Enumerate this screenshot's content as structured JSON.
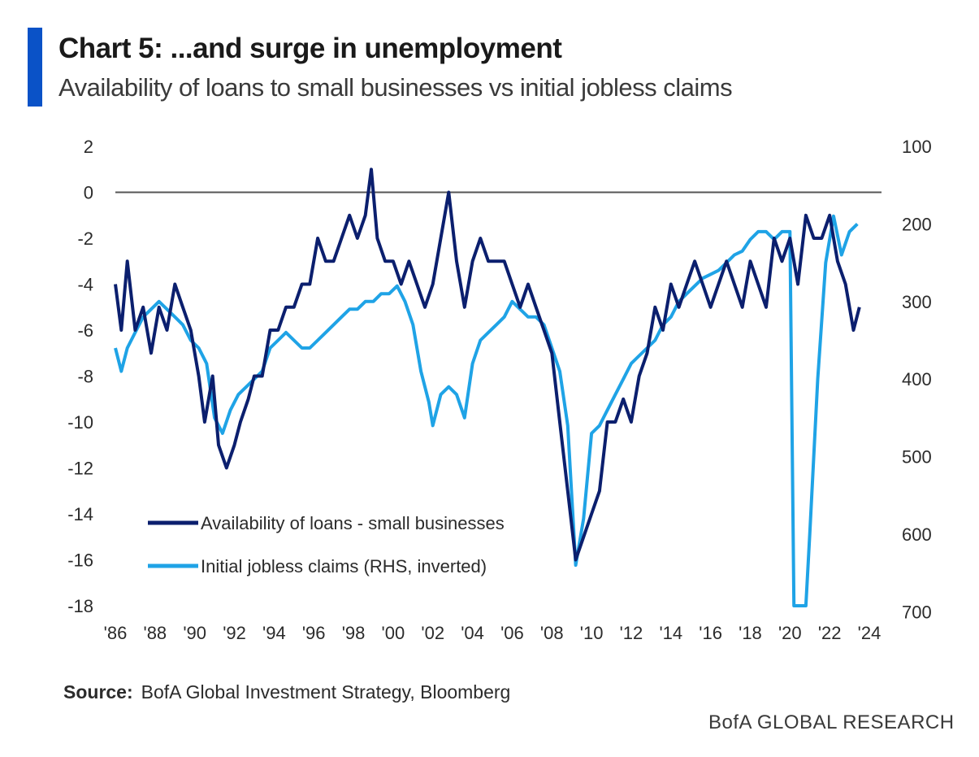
{
  "header": {
    "title": "Chart 5: ...and surge in unemployment",
    "subtitle": "Availability of loans to small businesses vs initial jobless claims",
    "accent_color": "#0a52c7"
  },
  "footer": {
    "source_label": "Source:",
    "source_text": "BofA Global Investment Strategy, Bloomberg",
    "brand": "BofA GLOBAL RESEARCH"
  },
  "chart_data": {
    "type": "line",
    "x_range": [
      1986,
      2024
    ],
    "x_ticks": [
      "'86",
      "'88",
      "'90",
      "'92",
      "'94",
      "'96",
      "'98",
      "'00",
      "'02",
      "'04",
      "'06",
      "'08",
      "'10",
      "'12",
      "'14",
      "'16",
      "'18",
      "'20",
      "'22",
      "'24"
    ],
    "y_left": {
      "range": [
        -18,
        2
      ],
      "ticks": [
        "2",
        "0",
        "-2",
        "-4",
        "-6",
        "-8",
        "-10",
        "-12",
        "-14",
        "-16",
        "-18"
      ]
    },
    "y_right": {
      "range": [
        100,
        750
      ],
      "inverted": true,
      "ticks": [
        "100",
        "200",
        "300",
        "400",
        "500",
        "600",
        "700"
      ]
    },
    "zero_line": 0,
    "legend_position": "lower-left",
    "series": [
      {
        "name": "Availability of loans - small businesses",
        "axis": "left",
        "color": "#0b1f6e",
        "points": [
          [
            1986.0,
            -4
          ],
          [
            1986.3,
            -6
          ],
          [
            1986.6,
            -3
          ],
          [
            1987.0,
            -6
          ],
          [
            1987.4,
            -5
          ],
          [
            1987.8,
            -7
          ],
          [
            1988.2,
            -5
          ],
          [
            1988.6,
            -6
          ],
          [
            1989.0,
            -4
          ],
          [
            1989.4,
            -5
          ],
          [
            1989.8,
            -6
          ],
          [
            1990.2,
            -8
          ],
          [
            1990.5,
            -10
          ],
          [
            1990.9,
            -8
          ],
          [
            1991.2,
            -11
          ],
          [
            1991.6,
            -12
          ],
          [
            1992.0,
            -11
          ],
          [
            1992.3,
            -10
          ],
          [
            1992.7,
            -9
          ],
          [
            1993.0,
            -8
          ],
          [
            1993.4,
            -8
          ],
          [
            1993.8,
            -6
          ],
          [
            1994.2,
            -6
          ],
          [
            1994.6,
            -5
          ],
          [
            1995.0,
            -5
          ],
          [
            1995.4,
            -4
          ],
          [
            1995.8,
            -4
          ],
          [
            1996.2,
            -2
          ],
          [
            1996.6,
            -3
          ],
          [
            1997.0,
            -3
          ],
          [
            1997.4,
            -2
          ],
          [
            1997.8,
            -1
          ],
          [
            1998.2,
            -2
          ],
          [
            1998.6,
            -1
          ],
          [
            1998.9,
            1
          ],
          [
            1999.2,
            -2
          ],
          [
            1999.6,
            -3
          ],
          [
            2000.0,
            -3
          ],
          [
            2000.4,
            -4
          ],
          [
            2000.8,
            -3
          ],
          [
            2001.2,
            -4
          ],
          [
            2001.6,
            -5
          ],
          [
            2002.0,
            -4
          ],
          [
            2002.4,
            -2
          ],
          [
            2002.8,
            0
          ],
          [
            2003.2,
            -3
          ],
          [
            2003.6,
            -5
          ],
          [
            2004.0,
            -3
          ],
          [
            2004.4,
            -2
          ],
          [
            2004.8,
            -3
          ],
          [
            2005.2,
            -3
          ],
          [
            2005.6,
            -3
          ],
          [
            2006.0,
            -4
          ],
          [
            2006.4,
            -5
          ],
          [
            2006.8,
            -4
          ],
          [
            2007.2,
            -5
          ],
          [
            2007.6,
            -6
          ],
          [
            2008.0,
            -7
          ],
          [
            2008.4,
            -10
          ],
          [
            2008.8,
            -13
          ],
          [
            2009.2,
            -16
          ],
          [
            2009.6,
            -15
          ],
          [
            2010.0,
            -14
          ],
          [
            2010.4,
            -13
          ],
          [
            2010.8,
            -10
          ],
          [
            2011.2,
            -10
          ],
          [
            2011.6,
            -9
          ],
          [
            2012.0,
            -10
          ],
          [
            2012.4,
            -8
          ],
          [
            2012.8,
            -7
          ],
          [
            2013.2,
            -5
          ],
          [
            2013.6,
            -6
          ],
          [
            2014.0,
            -4
          ],
          [
            2014.4,
            -5
          ],
          [
            2014.8,
            -4
          ],
          [
            2015.2,
            -3
          ],
          [
            2015.6,
            -4
          ],
          [
            2016.0,
            -5
          ],
          [
            2016.4,
            -4
          ],
          [
            2016.8,
            -3
          ],
          [
            2017.2,
            -4
          ],
          [
            2017.6,
            -5
          ],
          [
            2018.0,
            -3
          ],
          [
            2018.4,
            -4
          ],
          [
            2018.8,
            -5
          ],
          [
            2019.2,
            -2
          ],
          [
            2019.6,
            -3
          ],
          [
            2020.0,
            -2
          ],
          [
            2020.4,
            -4
          ],
          [
            2020.8,
            -1
          ],
          [
            2021.2,
            -2
          ],
          [
            2021.6,
            -2
          ],
          [
            2022.0,
            -1
          ],
          [
            2022.4,
            -3
          ],
          [
            2022.8,
            -4
          ],
          [
            2023.2,
            -6
          ],
          [
            2023.5,
            -5
          ]
        ]
      },
      {
        "name": "Initial jobless claims (RHS, inverted)",
        "axis": "right",
        "color": "#1fa3e6",
        "points": [
          [
            1986.0,
            360
          ],
          [
            1986.3,
            390
          ],
          [
            1986.6,
            360
          ],
          [
            1987.0,
            340
          ],
          [
            1987.4,
            320
          ],
          [
            1987.8,
            310
          ],
          [
            1988.2,
            300
          ],
          [
            1988.6,
            310
          ],
          [
            1989.0,
            320
          ],
          [
            1989.4,
            330
          ],
          [
            1989.8,
            350
          ],
          [
            1990.2,
            360
          ],
          [
            1990.6,
            380
          ],
          [
            1991.0,
            450
          ],
          [
            1991.4,
            470
          ],
          [
            1991.8,
            440
          ],
          [
            1992.2,
            420
          ],
          [
            1992.6,
            410
          ],
          [
            1993.0,
            400
          ],
          [
            1993.4,
            390
          ],
          [
            1993.8,
            360
          ],
          [
            1994.2,
            350
          ],
          [
            1994.6,
            340
          ],
          [
            1995.0,
            350
          ],
          [
            1995.4,
            360
          ],
          [
            1995.8,
            360
          ],
          [
            1996.2,
            350
          ],
          [
            1996.6,
            340
          ],
          [
            1997.0,
            330
          ],
          [
            1997.4,
            320
          ],
          [
            1997.8,
            310
          ],
          [
            1998.2,
            310
          ],
          [
            1998.6,
            300
          ],
          [
            1999.0,
            300
          ],
          [
            1999.4,
            290
          ],
          [
            1999.8,
            290
          ],
          [
            2000.2,
            280
          ],
          [
            2000.6,
            300
          ],
          [
            2001.0,
            330
          ],
          [
            2001.4,
            390
          ],
          [
            2001.8,
            430
          ],
          [
            2002.0,
            460
          ],
          [
            2002.4,
            420
          ],
          [
            2002.8,
            410
          ],
          [
            2003.2,
            420
          ],
          [
            2003.6,
            450
          ],
          [
            2004.0,
            380
          ],
          [
            2004.4,
            350
          ],
          [
            2004.8,
            340
          ],
          [
            2005.2,
            330
          ],
          [
            2005.6,
            320
          ],
          [
            2006.0,
            300
          ],
          [
            2006.4,
            310
          ],
          [
            2006.8,
            320
          ],
          [
            2007.2,
            320
          ],
          [
            2007.6,
            330
          ],
          [
            2008.0,
            360
          ],
          [
            2008.4,
            390
          ],
          [
            2008.8,
            460
          ],
          [
            2009.2,
            640
          ],
          [
            2009.6,
            580
          ],
          [
            2010.0,
            470
          ],
          [
            2010.4,
            460
          ],
          [
            2010.8,
            440
          ],
          [
            2011.2,
            420
          ],
          [
            2011.6,
            400
          ],
          [
            2012.0,
            380
          ],
          [
            2012.4,
            370
          ],
          [
            2012.8,
            360
          ],
          [
            2013.2,
            350
          ],
          [
            2013.6,
            330
          ],
          [
            2014.0,
            320
          ],
          [
            2014.4,
            300
          ],
          [
            2014.8,
            290
          ],
          [
            2015.2,
            280
          ],
          [
            2015.6,
            270
          ],
          [
            2016.0,
            265
          ],
          [
            2016.4,
            260
          ],
          [
            2016.8,
            250
          ],
          [
            2017.2,
            240
          ],
          [
            2017.6,
            235
          ],
          [
            2018.0,
            220
          ],
          [
            2018.4,
            210
          ],
          [
            2018.8,
            210
          ],
          [
            2019.2,
            220
          ],
          [
            2019.6,
            210
          ],
          [
            2020.0,
            210
          ],
          [
            2020.2,
            750
          ],
          [
            2020.8,
            750
          ],
          [
            2021.0,
            600
          ],
          [
            2021.4,
            400
          ],
          [
            2021.8,
            250
          ],
          [
            2022.2,
            190
          ],
          [
            2022.6,
            240
          ],
          [
            2023.0,
            210
          ],
          [
            2023.4,
            200
          ]
        ]
      }
    ]
  }
}
